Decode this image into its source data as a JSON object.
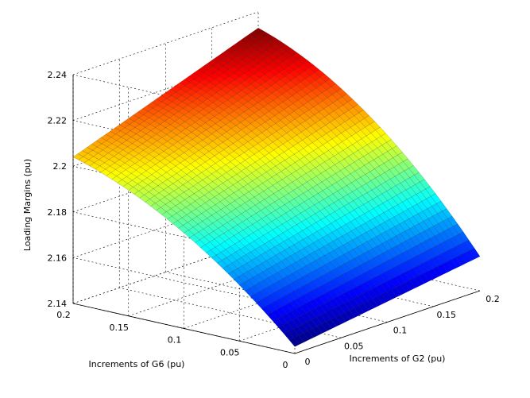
{
  "chart_data": {
    "type": "surface",
    "title": "",
    "xlabel": "Increments of G2 (pu)",
    "ylabel": "Increments of G6 (pu)",
    "zlabel": "Loading Margins (pu)",
    "x_ticks": [
      "0",
      "0.05",
      "0.1",
      "0.15",
      "0.2"
    ],
    "y_ticks": [
      "0",
      "0.05",
      "0.1",
      "0.15",
      "0.2"
    ],
    "z_ticks": [
      "2.14",
      "2.16",
      "2.18",
      "2.2",
      "2.22",
      "2.24"
    ],
    "xlim": [
      0,
      0.2
    ],
    "ylim": [
      0,
      0.2
    ],
    "zlim": [
      2.14,
      2.24
    ],
    "grid": true,
    "colormap": "jet",
    "corner_values": [
      {
        "x": 0.0,
        "y": 0.0,
        "z": 2.143
      },
      {
        "x": 0.2,
        "y": 0.0,
        "z": 2.155
      },
      {
        "x": 0.0,
        "y": 0.2,
        "z": 2.204
      },
      {
        "x": 0.2,
        "y": 0.2,
        "z": 2.233
      }
    ],
    "z_peak_along_y": 0.2,
    "mesh_resolution": 41
  }
}
